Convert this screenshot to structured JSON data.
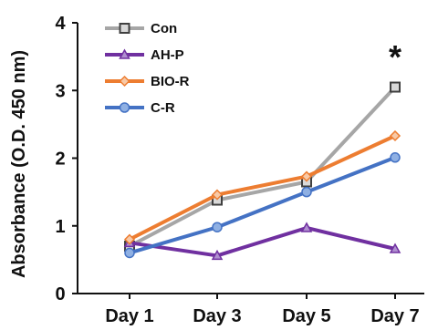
{
  "chart_data": {
    "type": "line",
    "title": "",
    "xlabel": "",
    "ylabel": "Absorbance (O.D. 450 nm)",
    "categories": [
      "Day 1",
      "Day 3",
      "Day 5",
      "Day 7"
    ],
    "ylim": [
      0,
      4
    ],
    "yticks": [
      "0",
      "1",
      "2",
      "3",
      "4"
    ],
    "grid": false,
    "legend_position": "top-left",
    "series": [
      {
        "name": "Con",
        "values": [
          0.7,
          1.38,
          1.65,
          3.05
        ],
        "color": "#a6a6a6",
        "marker": "square"
      },
      {
        "name": "AH-P",
        "values": [
          0.75,
          0.56,
          0.97,
          0.66
        ],
        "color": "#7030a0",
        "marker": "triangle"
      },
      {
        "name": "BIO-R",
        "values": [
          0.8,
          1.46,
          1.73,
          2.33
        ],
        "color": "#ed7d31",
        "marker": "diamond"
      },
      {
        "name": "C-R",
        "values": [
          0.6,
          0.98,
          1.5,
          2.01
        ],
        "color": "#4472c4",
        "marker": "circle"
      }
    ],
    "annotations": [
      {
        "text": "*",
        "category": "Day 7"
      }
    ]
  }
}
